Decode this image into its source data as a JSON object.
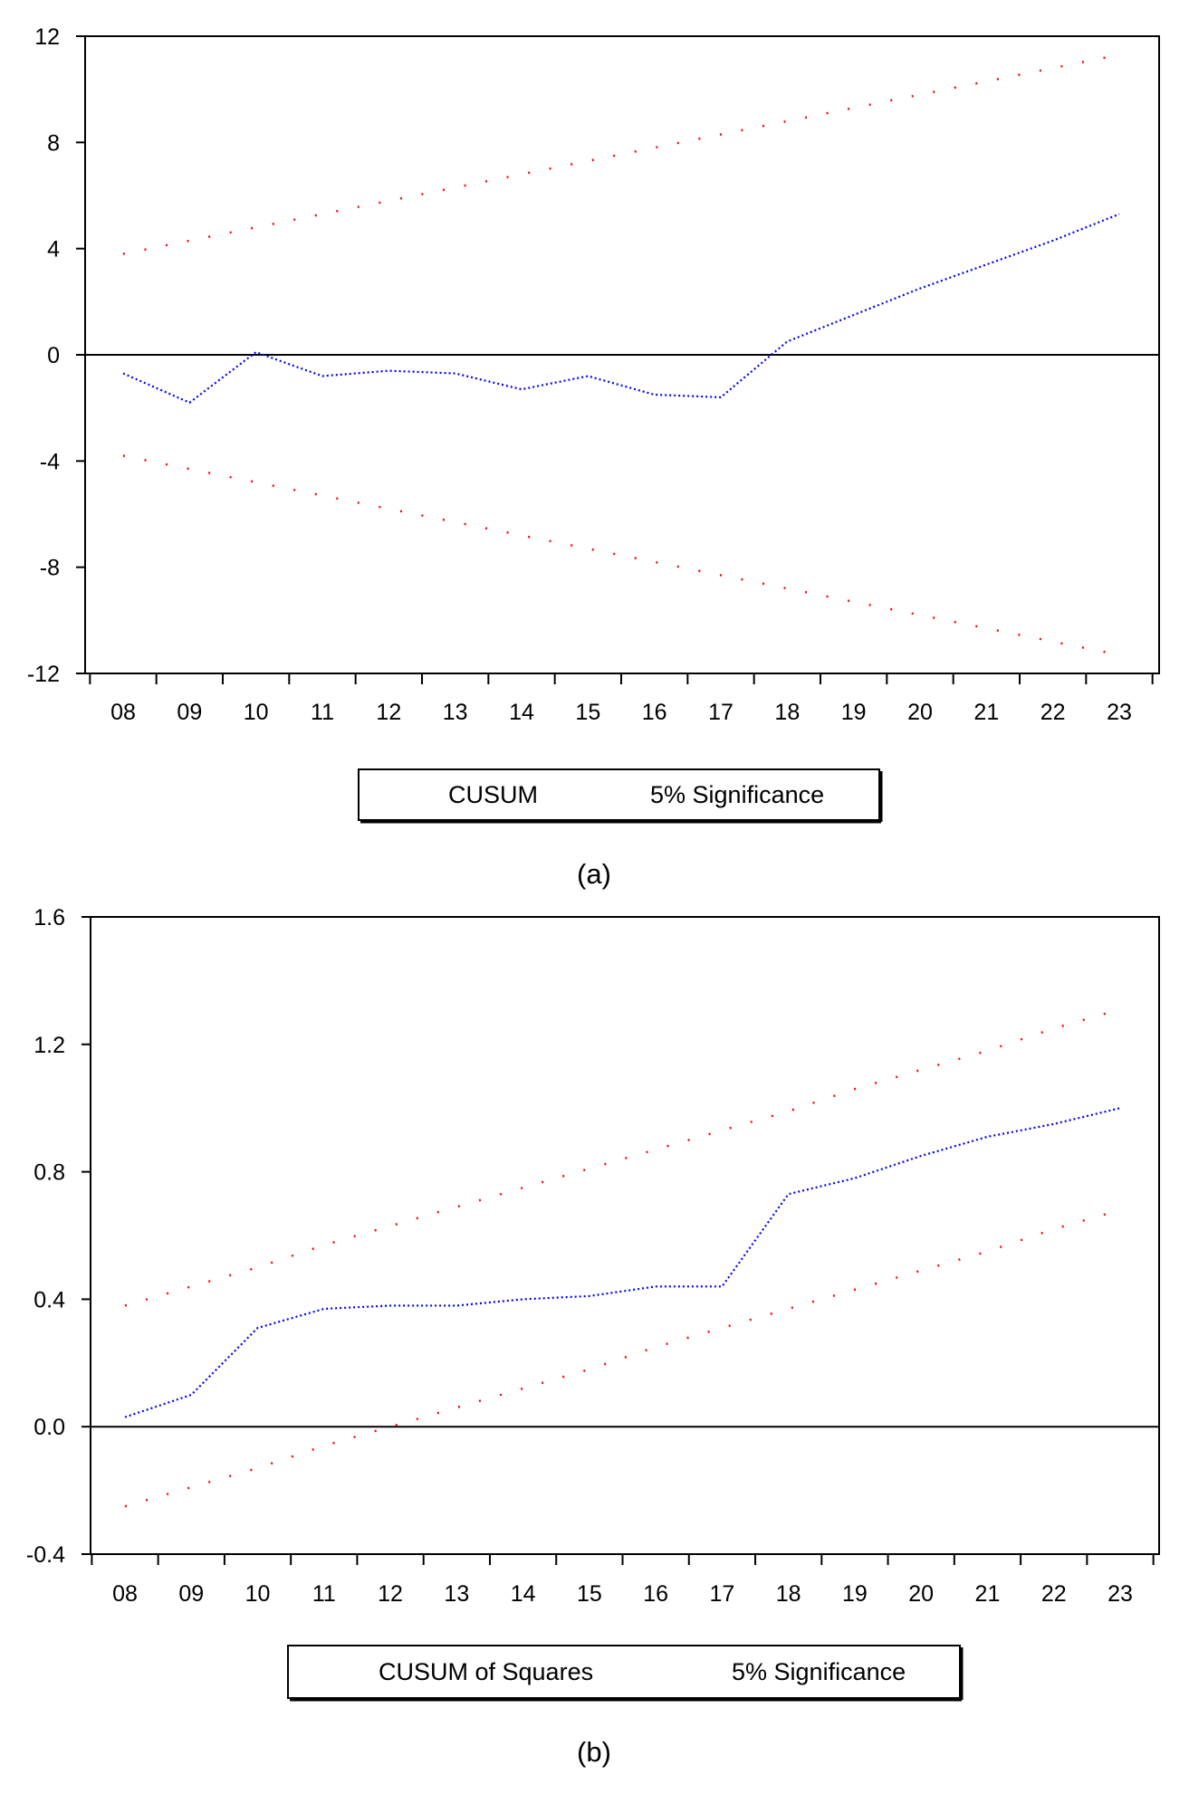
{
  "chart_data": [
    {
      "type": "line",
      "caption": "(a)",
      "categories": [
        "08",
        "09",
        "10",
        "11",
        "12",
        "13",
        "14",
        "15",
        "16",
        "17",
        "18",
        "19",
        "20",
        "21",
        "22",
        "23"
      ],
      "ylim": [
        -12,
        12
      ],
      "yticks": [
        12,
        8,
        4,
        0,
        -4,
        -8,
        -12
      ],
      "ytick_labels": [
        "12",
        "8",
        "4",
        "0",
        "-4",
        "-8",
        "-12"
      ],
      "legend": [
        "CUSUM",
        "5% Significance"
      ],
      "series": [
        {
          "name": "CUSUM",
          "color": "#0000ff",
          "style": "dotted",
          "values": [
            -0.7,
            -1.8,
            0.1,
            -0.8,
            -0.6,
            -0.7,
            -1.3,
            -0.8,
            -1.5,
            -1.6,
            0.5,
            1.5,
            2.5,
            3.4,
            4.3,
            5.3
          ]
        },
        {
          "name": "5% Significance",
          "color": "#ff0000",
          "style": "dotted",
          "values": [
            3.8,
            4.3,
            4.8,
            5.3,
            5.8,
            6.3,
            6.8,
            7.3,
            7.8,
            8.3,
            8.8,
            9.3,
            9.8,
            10.3,
            10.8,
            11.3
          ]
        },
        {
          "name": "5% Significance",
          "color": "#ff0000",
          "style": "dotted",
          "values": [
            -3.8,
            -4.3,
            -4.8,
            -5.3,
            -5.8,
            -6.3,
            -6.8,
            -7.3,
            -7.8,
            -8.3,
            -8.8,
            -9.3,
            -9.8,
            -10.3,
            -10.8,
            -11.3
          ]
        }
      ],
      "zero_line": true
    },
    {
      "type": "line",
      "caption": "(b)",
      "categories": [
        "08",
        "09",
        "10",
        "11",
        "12",
        "13",
        "14",
        "15",
        "16",
        "17",
        "18",
        "19",
        "20",
        "21",
        "22",
        "23"
      ],
      "ylim": [
        -0.4,
        1.6
      ],
      "yticks": [
        1.6,
        1.2,
        0.8,
        0.4,
        0.0,
        -0.4
      ],
      "ytick_labels": [
        "1.6",
        "1.2",
        "0.8",
        "0.4",
        "0.0",
        "-0.4"
      ],
      "legend": [
        "CUSUM of Squares",
        "5% Significance"
      ],
      "series": [
        {
          "name": "CUSUM of Squares",
          "color": "#0000ff",
          "style": "dotted",
          "values": [
            0.03,
            0.1,
            0.31,
            0.37,
            0.38,
            0.38,
            0.4,
            0.41,
            0.44,
            0.44,
            0.73,
            0.78,
            0.85,
            0.91,
            0.95,
            1.0
          ]
        },
        {
          "name": "5% Significance",
          "color": "#ff0000",
          "style": "dotted",
          "values": [
            0.38,
            0.44,
            0.5,
            0.57,
            0.63,
            0.69,
            0.75,
            0.81,
            0.87,
            0.93,
            0.99,
            1.06,
            1.12,
            1.18,
            1.25,
            1.31
          ]
        },
        {
          "name": "5% Significance",
          "color": "#ff0000",
          "style": "dotted",
          "values": [
            -0.25,
            -0.19,
            -0.13,
            -0.06,
            0.0,
            0.06,
            0.12,
            0.18,
            0.25,
            0.31,
            0.37,
            0.43,
            0.49,
            0.55,
            0.62,
            0.68
          ]
        }
      ],
      "zero_line": true
    }
  ]
}
